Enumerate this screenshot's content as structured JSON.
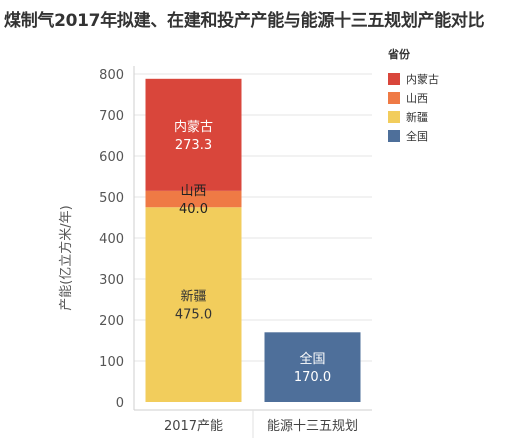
{
  "title": "煤制气2017年拟建、在建和投产产能与能源十三五规划产能对比",
  "chart_data": {
    "type": "bar",
    "stacked": true,
    "categories": [
      "2017产能",
      "能源十三五规划"
    ],
    "ylabel": "产能(亿立方米/年)",
    "xlabel": "",
    "ylim": [
      0,
      800
    ],
    "yticks": [
      0,
      100,
      200,
      300,
      400,
      500,
      600,
      700,
      800
    ],
    "grid": true,
    "legend": {
      "title": "省份",
      "position": "top-right",
      "items": [
        {
          "name": "内蒙古",
          "color": "#d9463b"
        },
        {
          "name": "山西",
          "color": "#ef7a45"
        },
        {
          "name": "新疆",
          "color": "#f2cd5c"
        },
        {
          "name": "全国",
          "color": "#4e6f9a"
        }
      ]
    },
    "segments": [
      {
        "category": "2017产能",
        "name": "新疆",
        "value": 475.0,
        "label_value": "475.0",
        "color": "#f2cd5c",
        "text_color": "#333333"
      },
      {
        "category": "2017产能",
        "name": "山西",
        "value": 40.0,
        "label_value": "40.0",
        "color": "#ef7a45",
        "text_color": "#222222"
      },
      {
        "category": "2017产能",
        "name": "内蒙古",
        "value": 273.3,
        "label_value": "273.3",
        "color": "#d9463b",
        "text_color": "#ffffff"
      },
      {
        "category": "能源十三五规划",
        "name": "全国",
        "value": 170.0,
        "label_value": "170.0",
        "color": "#4e6f9a",
        "text_color": "#ffffff"
      }
    ]
  }
}
